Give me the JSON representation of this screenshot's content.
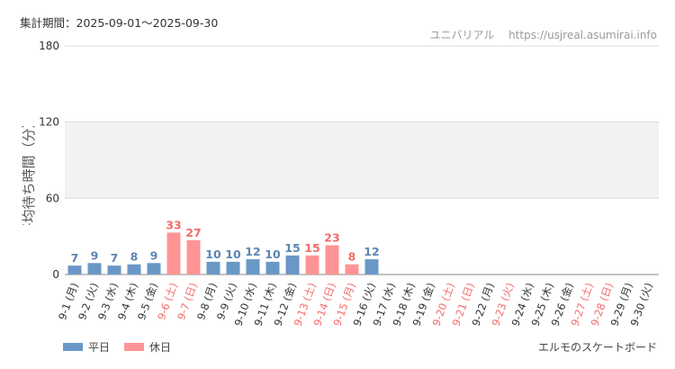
{
  "header": {
    "period_label": "集計期間：2025-09-01～2025-09-30",
    "site_name": "ユニバリアル",
    "site_url": "https://usjreal.asumirai.info"
  },
  "footer": {
    "attraction_name": "エルモのスケートボード"
  },
  "colors": {
    "weekday": "#6a98c6",
    "holiday": "#ff9494",
    "weekday_label": "#5b86b3",
    "holiday_label": "#f26b6b",
    "grid_band": "#f2f2f2"
  },
  "chart_data": {
    "type": "bar",
    "ylabel": "平均待ち時間（分）",
    "ylim": [
      0,
      180
    ],
    "yticks": [
      0,
      60,
      120,
      180
    ],
    "shaded_band": [
      60,
      120
    ],
    "legend": {
      "placement": "bottom-left",
      "entries": [
        "平日",
        "休日"
      ]
    },
    "categories": [
      "9-1 (月)",
      "9-2 (火)",
      "9-3 (水)",
      "9-4 (木)",
      "9-5 (金)",
      "9-6 (土)",
      "9-7 (日)",
      "9-8 (月)",
      "9-9 (火)",
      "9-10 (水)",
      "9-11 (木)",
      "9-12 (金)",
      "9-13 (土)",
      "9-14 (日)",
      "9-15 (月)",
      "9-16 (火)",
      "9-17 (水)",
      "9-18 (木)",
      "9-19 (金)",
      "9-20 (土)",
      "9-21 (日)",
      "9-22 (月)",
      "9-23 (火)",
      "9-24 (水)",
      "9-25 (木)",
      "9-26 (金)",
      "9-27 (土)",
      "9-28 (日)",
      "9-29 (月)",
      "9-30 (火)"
    ],
    "values": [
      7,
      9,
      7,
      8,
      9,
      33,
      27,
      10,
      10,
      12,
      10,
      15,
      15,
      23,
      8,
      12,
      null,
      null,
      null,
      null,
      null,
      null,
      null,
      null,
      null,
      null,
      null,
      null,
      null,
      null
    ],
    "day_type": [
      "平日",
      "平日",
      "平日",
      "平日",
      "平日",
      "休日",
      "休日",
      "平日",
      "平日",
      "平日",
      "平日",
      "平日",
      "休日",
      "休日",
      "休日",
      "平日",
      "平日",
      "平日",
      "平日",
      "休日",
      "休日",
      "平日",
      "休日",
      "平日",
      "平日",
      "平日",
      "休日",
      "休日",
      "平日",
      "平日"
    ]
  }
}
